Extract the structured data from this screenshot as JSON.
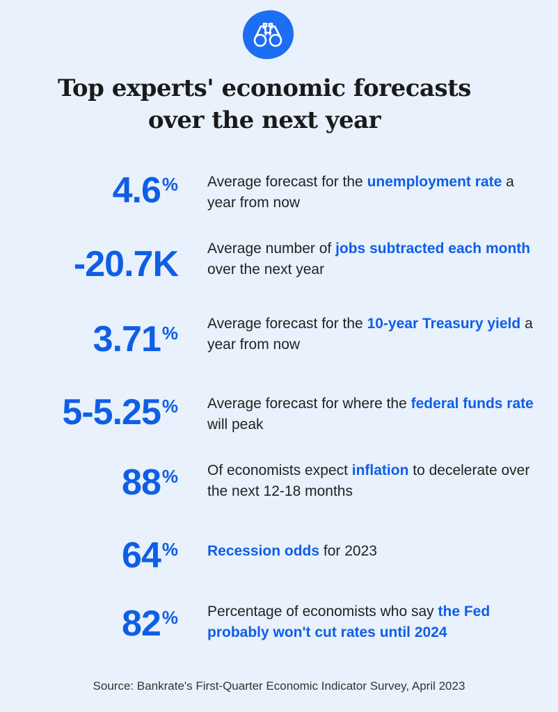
{
  "header": {
    "logo_icon": "binoculars-icon",
    "title_line1": "Top experts' economic forecasts",
    "title_line2": "over the next year"
  },
  "colors": {
    "accent": "#0f5ee6",
    "background": "#e8f1fc",
    "text": "#222222"
  },
  "stats": [
    {
      "number": "4.6",
      "unit": "%",
      "desc": [
        {
          "text": "Average forecast for the ",
          "highlight": false
        },
        {
          "text": "unemployment rate",
          "highlight": true
        },
        {
          "text": " a year from now",
          "highlight": false
        }
      ]
    },
    {
      "number": "-20.7K",
      "unit": "",
      "desc": [
        {
          "text": "Average number of ",
          "highlight": false
        },
        {
          "text": "jobs subtracted each month",
          "highlight": true
        },
        {
          "text": " over the next year",
          "highlight": false
        }
      ]
    },
    {
      "number": "3.71",
      "unit": "%",
      "desc": [
        {
          "text": "Average forecast for the ",
          "highlight": false
        },
        {
          "text": "10-year Treasury yield",
          "highlight": true
        },
        {
          "text": " a year from now",
          "highlight": false
        }
      ]
    },
    {
      "number": "5-5.25",
      "unit": "%",
      "desc": [
        {
          "text": "Average forecast for where the ",
          "highlight": false
        },
        {
          "text": "federal funds rate",
          "highlight": true
        },
        {
          "text": " will peak",
          "highlight": false
        }
      ]
    },
    {
      "number": "88",
      "unit": "%",
      "desc": [
        {
          "text": "Of economists expect ",
          "highlight": false
        },
        {
          "text": "inflation",
          "highlight": true
        },
        {
          "text": " to decelerate over the next 12-18 months",
          "highlight": false
        }
      ]
    },
    {
      "number": "64",
      "unit": "%",
      "desc": [
        {
          "text": "Recession odds",
          "highlight": true
        },
        {
          "text": " for 2023",
          "highlight": false
        }
      ]
    },
    {
      "number": "82",
      "unit": "%",
      "desc": [
        {
          "text": "Percentage of economists who say ",
          "highlight": false
        },
        {
          "text": "the Fed probably won't cut rates until 2024",
          "highlight": true
        }
      ]
    }
  ],
  "footer": {
    "source": "Source: Bankrate's First-Quarter Economic Indicator Survey, April 2023"
  }
}
